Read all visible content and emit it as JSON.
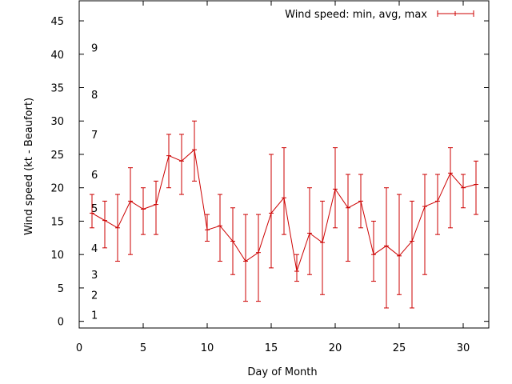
{
  "chart_data": {
    "type": "line",
    "xlabel": "Day of Month",
    "ylabel": "Wind speed (kt - Beaufort)",
    "xlim": [
      0,
      32
    ],
    "ylim": [
      -1,
      48
    ],
    "xticks": [
      0,
      5,
      10,
      15,
      20,
      25,
      30
    ],
    "yticks": [
      0,
      5,
      10,
      15,
      20,
      25,
      30,
      35,
      40,
      45
    ],
    "grid": false,
    "legend": {
      "position": "top-right"
    },
    "series": [
      {
        "name": "Wind speed: min, avg, max",
        "color": "#cc0000",
        "x": [
          1,
          2,
          3,
          4,
          5,
          6,
          7,
          8,
          9,
          10,
          11,
          12,
          13,
          14,
          15,
          16,
          17,
          18,
          19,
          20,
          21,
          22,
          23,
          24,
          25,
          26,
          27,
          28,
          29,
          30,
          31
        ],
        "avg": [
          16.2,
          15.1,
          14,
          18,
          16.8,
          17.5,
          24.8,
          24,
          25.7,
          13.7,
          14.3,
          12,
          9,
          10.3,
          16.2,
          18.5,
          7.5,
          13.2,
          11.8,
          19.8,
          17,
          18,
          10,
          11.3,
          9.8,
          12,
          17.2,
          18,
          22.2,
          20,
          20.5
        ],
        "min": [
          14,
          11,
          9,
          10,
          13,
          13,
          20,
          19,
          21,
          12,
          9,
          7,
          3,
          3,
          8,
          13,
          6,
          7,
          4,
          14,
          9,
          14,
          6,
          2,
          4,
          2,
          7,
          13,
          14,
          17,
          16
        ],
        "max": [
          19,
          18,
          19,
          23,
          20,
          21,
          28,
          28,
          30,
          16,
          19,
          17,
          16,
          16,
          25,
          26,
          10,
          20,
          18,
          26,
          22,
          22,
          15,
          20,
          19,
          18,
          22,
          22,
          26,
          22,
          24
        ]
      }
    ],
    "annotations": [
      {
        "text": "1",
        "x": 0.5,
        "y": 1
      },
      {
        "text": "2",
        "x": 0.5,
        "y": 4
      },
      {
        "text": "3",
        "x": 0.5,
        "y": 7
      },
      {
        "text": "4",
        "x": 0.5,
        "y": 11
      },
      {
        "text": "5",
        "x": 0.5,
        "y": 17
      },
      {
        "text": "6",
        "x": 0.5,
        "y": 22
      },
      {
        "text": "7",
        "x": 0.5,
        "y": 28
      },
      {
        "text": "8",
        "x": 0.5,
        "y": 34
      },
      {
        "text": "9",
        "x": 0.5,
        "y": 41
      }
    ]
  }
}
